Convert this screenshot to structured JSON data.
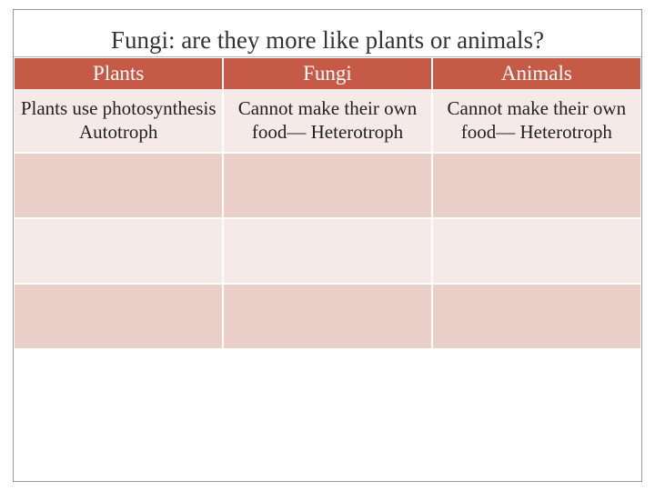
{
  "title": "Fungi: are they more like plants or animals?",
  "table": {
    "header_bg": "#c55a47",
    "header_color": "#ffffff",
    "row_light_bg": "#f5eae7",
    "row_dark_bg": "#e9cfc8",
    "title_fontsize": 27,
    "header_fontsize": 23,
    "cell_fontsize": 21,
    "columns": [
      "Plants",
      "Fungi",
      "Animals"
    ],
    "rows": [
      [
        "Plants use photosynthesis Autotroph",
        "Cannot make their own food— Heterotroph",
        "Cannot make their own food— Heterotroph"
      ],
      [
        "",
        "",
        ""
      ],
      [
        "",
        "",
        ""
      ],
      [
        "",
        "",
        ""
      ]
    ]
  }
}
